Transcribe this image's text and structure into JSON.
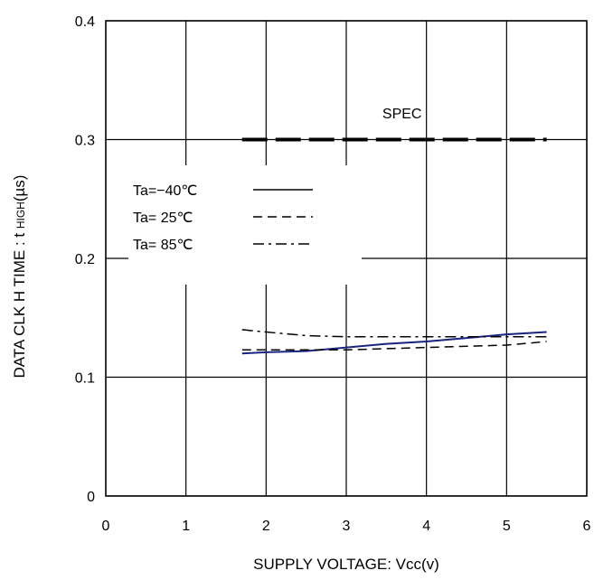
{
  "chart_data": {
    "type": "line",
    "xlabel": "SUPPLY VOLTAGE: Vcc(v)",
    "ylabel": "DATA CLK H TIME : t HIGH (µs)",
    "ylabel_parts": {
      "main": "DATA CLK H TIME : t ",
      "sub": "HIGH",
      "unit": "(µs)"
    },
    "xlim": [
      0,
      6
    ],
    "ylim": [
      0,
      0.4
    ],
    "x_ticks": [
      "0",
      "1",
      "2",
      "3",
      "4",
      "5",
      "6"
    ],
    "y_ticks": [
      "0",
      "0.1",
      "0.2",
      "0.3",
      "0.4"
    ],
    "grid": true,
    "legend_position": "upper-left",
    "spec": {
      "label": "SPEC",
      "y": 0.3,
      "x": [
        1.7,
        5.5
      ]
    },
    "series": [
      {
        "name": "Ta=−40℃",
        "style": "solid",
        "color": "#1a237e",
        "x": [
          1.7,
          2.0,
          2.5,
          3.0,
          3.5,
          4.0,
          4.5,
          5.0,
          5.5
        ],
        "y": [
          0.12,
          0.121,
          0.122,
          0.125,
          0.128,
          0.13,
          0.133,
          0.136,
          0.138
        ]
      },
      {
        "name": "Ta= 25℃",
        "style": "dashed",
        "color": "#000000",
        "x": [
          1.7,
          2.0,
          2.5,
          3.0,
          3.5,
          4.0,
          4.5,
          5.0,
          5.5
        ],
        "y": [
          0.123,
          0.123,
          0.123,
          0.123,
          0.124,
          0.125,
          0.126,
          0.127,
          0.13
        ]
      },
      {
        "name": "Ta= 85℃",
        "style": "dashdot",
        "color": "#000000",
        "x": [
          1.7,
          2.0,
          2.5,
          3.0,
          3.5,
          4.0,
          4.5,
          5.0,
          5.5
        ],
        "y": [
          0.14,
          0.138,
          0.135,
          0.134,
          0.134,
          0.134,
          0.134,
          0.134,
          0.134
        ]
      }
    ]
  }
}
